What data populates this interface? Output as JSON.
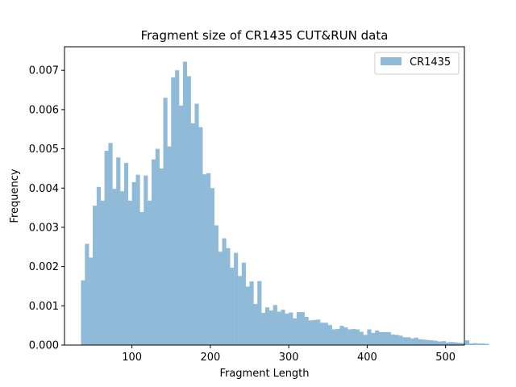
{
  "chart_data": {
    "type": "bar",
    "title": "Fragment size of CR1435 CUT&RUN data",
    "xlabel": "Fragment Length",
    "ylabel": "Frequency",
    "xlim": [
      14,
      524
    ],
    "ylim": [
      0,
      0.0076
    ],
    "x_ticks": [
      100,
      200,
      300,
      400,
      500
    ],
    "y_ticks": [
      0.0,
      0.001,
      0.002,
      0.003,
      0.004,
      0.005,
      0.006,
      0.007
    ],
    "y_tick_labels": [
      "0.000",
      "0.001",
      "0.002",
      "0.003",
      "0.004",
      "0.005",
      "0.006",
      "0.007"
    ],
    "bin_start": 35,
    "bin_width": 5,
    "series": [
      {
        "name": "CR1435",
        "color": "#8fbbd9",
        "values": [
          0.00165,
          0.00258,
          0.00223,
          0.00355,
          0.00403,
          0.00368,
          0.00495,
          0.00515,
          0.00398,
          0.00478,
          0.00392,
          0.00464,
          0.00368,
          0.00415,
          0.00434,
          0.00339,
          0.00432,
          0.00368,
          0.00473,
          0.005,
          0.0045,
          0.0063,
          0.00506,
          0.00682,
          0.007,
          0.0061,
          0.00722,
          0.00685,
          0.00565,
          0.00615,
          0.00555,
          0.00435,
          0.00438,
          0.004,
          0.00305,
          0.00238,
          0.00272,
          0.00247,
          0.00197,
          0.00235,
          0.00176,
          0.0021,
          0.00149,
          0.00162,
          0.00105,
          0.00163,
          0.00082,
          0.00096,
          0.00088,
          0.00102,
          0.00085,
          0.0009,
          0.0008,
          0.00083,
          0.00068,
          0.00084,
          0.00084,
          0.00072,
          0.00063,
          0.00064,
          0.00065,
          0.00057,
          0.00057,
          0.00051,
          0.0004,
          0.00041,
          0.00049,
          0.00045,
          0.0004,
          0.00041,
          0.0004,
          0.00034,
          0.00026,
          0.0004,
          0.00031,
          0.00037,
          0.00033,
          0.00033,
          0.00033,
          0.00027,
          0.00026,
          0.00024,
          0.0002,
          0.0002,
          0.00017,
          0.00019,
          0.00015,
          0.00014,
          0.00013,
          0.00012,
          0.00011,
          9e-05,
          0.0001,
          7e-05,
          8e-05,
          7e-05,
          6e-05,
          5e-05,
          0.00012,
          4e-05,
          5e-05,
          4e-05,
          4e-05,
          3e-05
        ]
      }
    ],
    "legend_position": "top-right",
    "grid": false
  }
}
